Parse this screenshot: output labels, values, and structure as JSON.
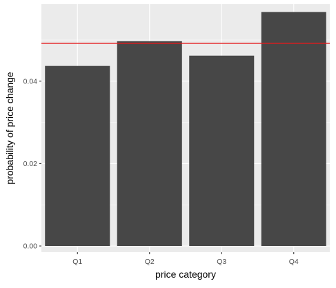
{
  "chart_data": {
    "type": "bar",
    "categories": [
      "Q1",
      "Q2",
      "Q3",
      "Q4"
    ],
    "values": [
      0.0437,
      0.0497,
      0.0462,
      0.0568
    ],
    "reference_line": {
      "value": 0.0492,
      "color": "#E41A1C"
    },
    "title": "",
    "xlabel": "price category",
    "ylabel": "probability of price change",
    "ylim": [
      -0.0015,
      0.0587
    ],
    "yticks": [
      0.0,
      0.02,
      0.04
    ],
    "ytick_labels": [
      "0.00",
      "0.02",
      "0.04"
    ],
    "grid": true,
    "legend": "none",
    "colors": {
      "panel_bg": "#EBEBEB",
      "grid": "#FFFFFF",
      "bar": "#474747",
      "axis_text": "#4D4D4D",
      "axis_title": "#000000"
    }
  }
}
